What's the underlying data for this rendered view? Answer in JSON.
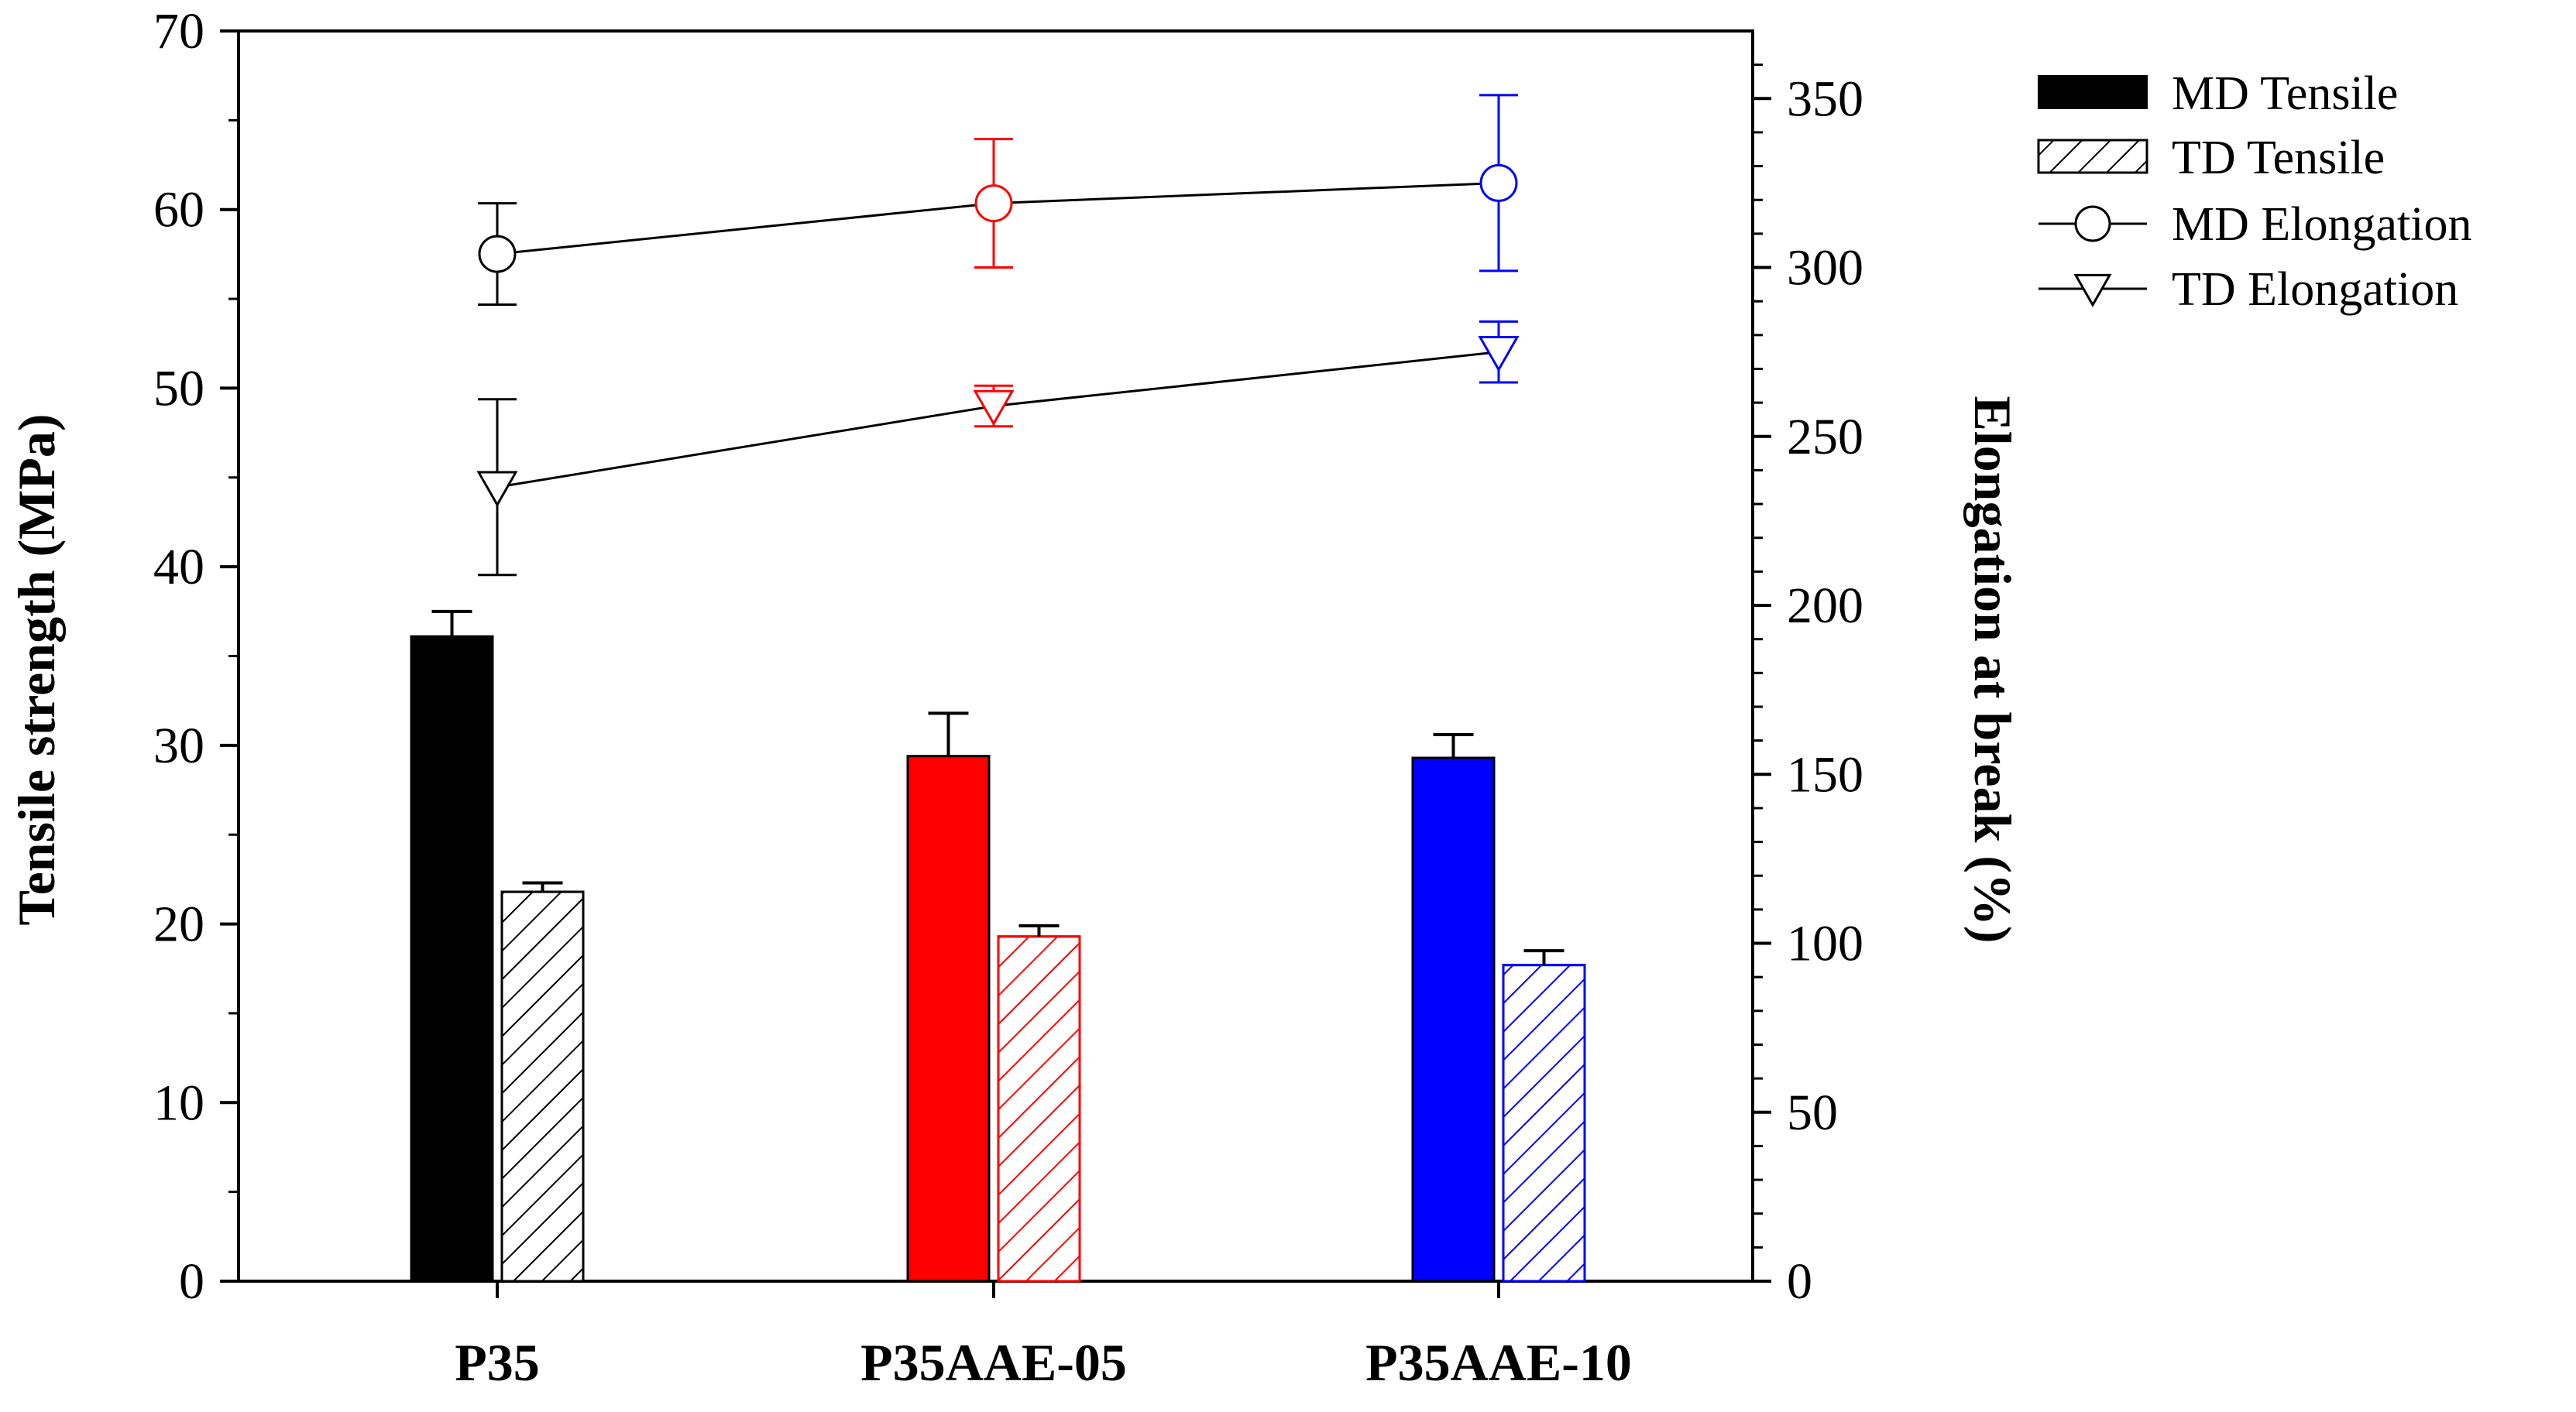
{
  "chart_data": {
    "type": "bar",
    "categories": [
      "P35",
      "P35AAE-05",
      "P35AAE-10"
    ],
    "category_colors": [
      "#000000",
      "#ff0000",
      "#0000ff"
    ],
    "left_axis": {
      "label": "Tensile strength (MPa)",
      "ylim": [
        0,
        70
      ],
      "ticks": [
        0,
        10,
        20,
        30,
        40,
        50,
        60,
        70
      ]
    },
    "right_axis": {
      "label": "Elongation at break (%)",
      "ylim": [
        0,
        370
      ],
      "ticks": [
        0,
        50,
        100,
        150,
        200,
        250,
        300,
        350
      ]
    },
    "series": [
      {
        "name": "MD Tensile",
        "kind": "bar",
        "fill": "solid",
        "axis": "left",
        "values": [
          36.1,
          29.4,
          29.3
        ],
        "errors": [
          1.4,
          2.4,
          1.3
        ]
      },
      {
        "name": "TD Tensile",
        "kind": "bar",
        "fill": "hatched",
        "axis": "left",
        "values": [
          21.8,
          19.3,
          17.7
        ],
        "errors": [
          0.5,
          0.6,
          0.8
        ]
      },
      {
        "name": "MD Elongation",
        "kind": "line",
        "marker": "circle",
        "axis": "right",
        "values": [
          304,
          319,
          325
        ],
        "errors": [
          15,
          19,
          26
        ]
      },
      {
        "name": "TD Elongation",
        "kind": "line",
        "marker": "triangle-down",
        "axis": "right",
        "values": [
          235,
          259,
          275
        ],
        "errors": [
          26,
          6,
          9
        ]
      }
    ],
    "grid": false,
    "legend_position": "top-right, outside plot"
  }
}
